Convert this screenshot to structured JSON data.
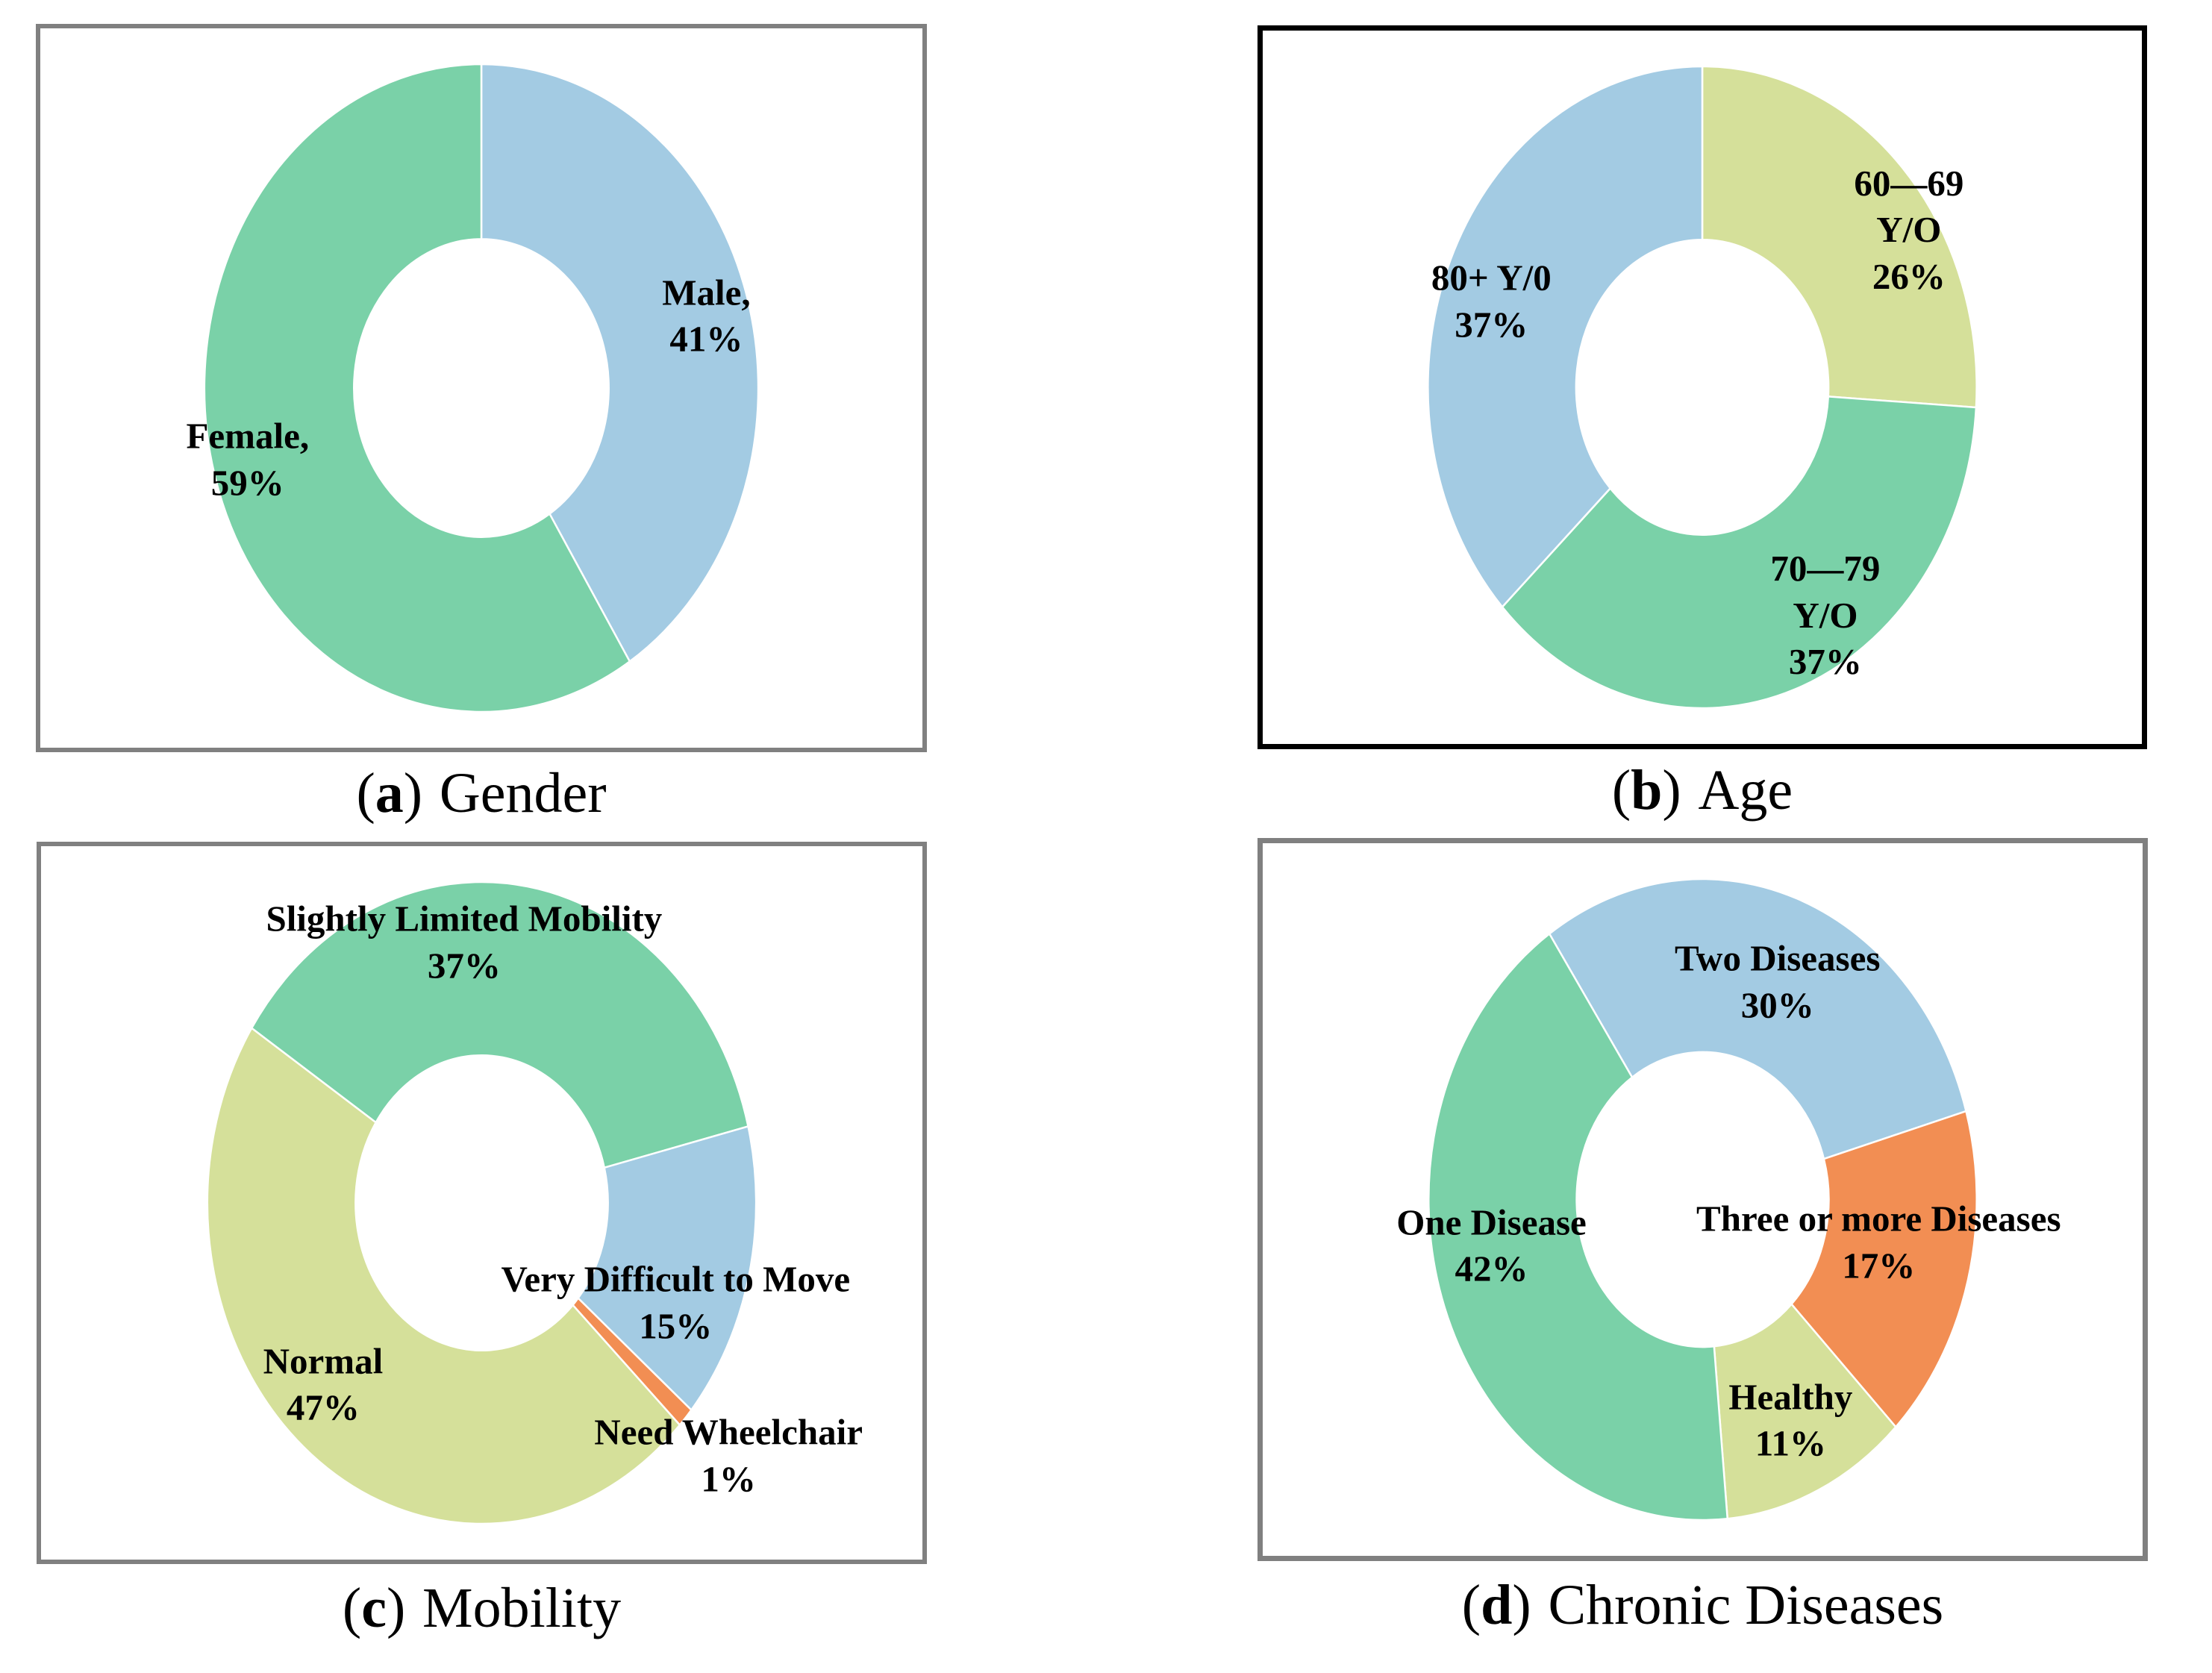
{
  "chart_data": [
    {
      "panel": "a",
      "type": "donut",
      "caption": {
        "open": "(",
        "letter": "a",
        "close": ")",
        "label": "Gender"
      },
      "title": "(a) Gender",
      "start_angle": 0,
      "hole": 0.46,
      "categories": [
        "Male",
        "Female"
      ],
      "values": [
        41,
        59
      ],
      "border": {
        "color": "#808080",
        "width": 6
      },
      "slices": [
        {
          "category": "Male",
          "value": 41,
          "color": "#A3CBE3",
          "label_lines": [
            "Male,",
            "41%"
          ],
          "label_pos": [
            0.755,
            0.4
          ]
        },
        {
          "category": "Female",
          "value": 59,
          "color": "#7AD1A8",
          "label_lines": [
            "Female,",
            "59%"
          ],
          "label_pos": [
            0.235,
            0.6
          ]
        }
      ]
    },
    {
      "panel": "b",
      "type": "donut",
      "caption": {
        "open": "(",
        "letter": "b",
        "close": ")",
        "label": "Age"
      },
      "title": "(b) Age",
      "start_angle": 0,
      "hole": 0.46,
      "categories": [
        "60—69 Y/O",
        "70—79 Y/O",
        "80+ Y/0"
      ],
      "values": [
        26,
        37,
        37
      ],
      "border": {
        "color": "#000000",
        "width": 7
      },
      "slices": [
        {
          "category": "60-69 Y/O",
          "value": 26,
          "color": "#D5E09A",
          "label_lines": [
            "60—69",
            "Y/O",
            "26%"
          ],
          "label_pos": [
            0.735,
            0.28
          ]
        },
        {
          "category": "70-79 Y/O",
          "value": 37,
          "color": "#7AD1A8",
          "label_lines": [
            "70—79",
            "Y/O",
            "37%"
          ],
          "label_pos": [
            0.64,
            0.82
          ]
        },
        {
          "category": "80plus Y/0",
          "value": 37,
          "color": "#A3CBE3",
          "label_lines": [
            "80+ Y/0",
            "37%"
          ],
          "label_pos": [
            0.26,
            0.38
          ]
        }
      ]
    },
    {
      "panel": "c",
      "type": "donut",
      "caption": {
        "open": "(",
        "letter": "c",
        "close": ")",
        "label": "Mobility"
      },
      "title": "(c) Mobility",
      "start_angle": -57,
      "hole": 0.46,
      "categories": [
        "Slightly Limited Mobility",
        "Very Difficult to Move",
        "Need Wheelchair",
        "Normal"
      ],
      "values": [
        37,
        15,
        1,
        47
      ],
      "border": {
        "color": "#808080",
        "width": 6
      },
      "slices": [
        {
          "category": "Slightly Limited Mobility",
          "value": 37,
          "color": "#7AD1A8",
          "label_lines": [
            "Slightly Limited Mobility",
            "37%"
          ],
          "label_pos": [
            0.48,
            0.135
          ]
        },
        {
          "category": "Very Difficult to Move",
          "value": 15,
          "color": "#A3CBE3",
          "label_lines": [
            "Very Difficult to Move",
            "15%"
          ],
          "label_pos": [
            0.72,
            0.64
          ]
        },
        {
          "category": "Need Wheelchair",
          "value": 1,
          "color": "#F28E53",
          "label_lines": [
            "Need Wheelchair",
            "1%"
          ],
          "label_pos": [
            0.78,
            0.855
          ]
        },
        {
          "category": "Normal",
          "value": 47,
          "color": "#D5E09A",
          "label_lines": [
            "Normal",
            "47%"
          ],
          "label_pos": [
            0.32,
            0.755
          ]
        }
      ]
    },
    {
      "panel": "d",
      "type": "donut",
      "caption": {
        "open": "(",
        "letter": "d",
        "close": ")",
        "label": "Chronic Diseases"
      },
      "title": "(d) Chronic Diseases",
      "start_angle": -34,
      "hole": 0.46,
      "categories": [
        "Two Diseases",
        "Three or more Diseases",
        "Healthy",
        "One Disease"
      ],
      "values": [
        30,
        17,
        11,
        42
      ],
      "border": {
        "color": "#808080",
        "width": 7
      },
      "slices": [
        {
          "category": "Two Diseases",
          "value": 30,
          "color": "#A3CBE3",
          "label_lines": [
            "Two Diseases",
            "30%"
          ],
          "label_pos": [
            0.585,
            0.195
          ]
        },
        {
          "category": "Three or more Diseases",
          "value": 17,
          "color": "#F28E53",
          "label_lines": [
            "Three or more Diseases",
            "17%"
          ],
          "label_pos": [
            0.7,
            0.56
          ]
        },
        {
          "category": "Healthy",
          "value": 11,
          "color": "#D5E09A",
          "label_lines": [
            "Healthy",
            "11%"
          ],
          "label_pos": [
            0.6,
            0.81
          ]
        },
        {
          "category": "One Disease",
          "value": 42,
          "color": "#7AD1A8",
          "label_lines": [
            "One Disease",
            "42%"
          ],
          "label_pos": [
            0.26,
            0.565
          ]
        }
      ]
    }
  ]
}
